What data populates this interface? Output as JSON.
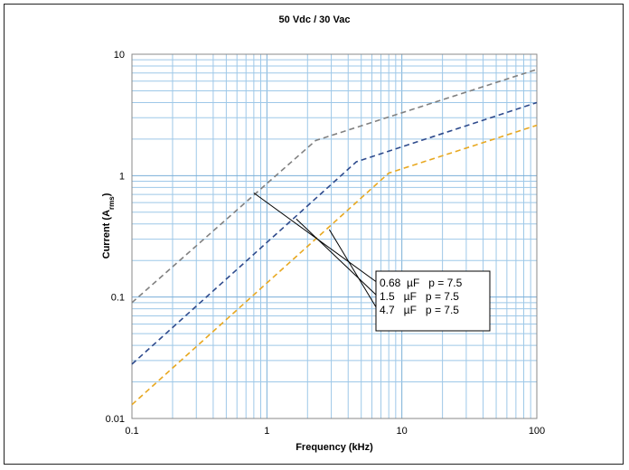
{
  "chart_data": {
    "type": "line",
    "title": "50 Vdc / 30 Vac",
    "xlabel": "Frequency (kHz)",
    "ylabel_main": "Current (A",
    "ylabel_sub": "rms",
    "ylabel_close": ")",
    "xscale": "log",
    "yscale": "log",
    "xlim": [
      0.1,
      100
    ],
    "ylim": [
      0.01,
      10
    ],
    "grid": true,
    "x_ticks": [
      "0.1",
      "1",
      "10",
      "100"
    ],
    "y_ticks": [
      "0.01",
      "0.1",
      "1",
      "10"
    ],
    "series": [
      {
        "name": "0.68  µF   p = 7.5",
        "color": "#808080",
        "dash": "dashed",
        "points": [
          [
            0.1,
            0.09
          ],
          [
            2.3,
            1.95
          ],
          [
            100,
            7.5
          ]
        ]
      },
      {
        "name": "1.5   µF   p = 7.5",
        "color": "#2e4a8c",
        "dash": "dashed",
        "points": [
          [
            0.1,
            0.028
          ],
          [
            4.6,
            1.3
          ],
          [
            100,
            4.0
          ]
        ]
      },
      {
        "name": "4.7   µF   p = 7.5",
        "color": "#e8a820",
        "dash": "dashed",
        "points": [
          [
            0.1,
            0.013
          ],
          [
            8.0,
            1.05
          ],
          [
            100,
            2.6
          ]
        ]
      }
    ],
    "legend_placement": "center-right",
    "callout_anchors": [
      [
        0.8,
        0.72
      ],
      [
        1.65,
        0.44
      ],
      [
        2.9,
        0.36
      ]
    ]
  },
  "colors": {
    "grid": "#9ec8e8",
    "axis": "#000000"
  }
}
